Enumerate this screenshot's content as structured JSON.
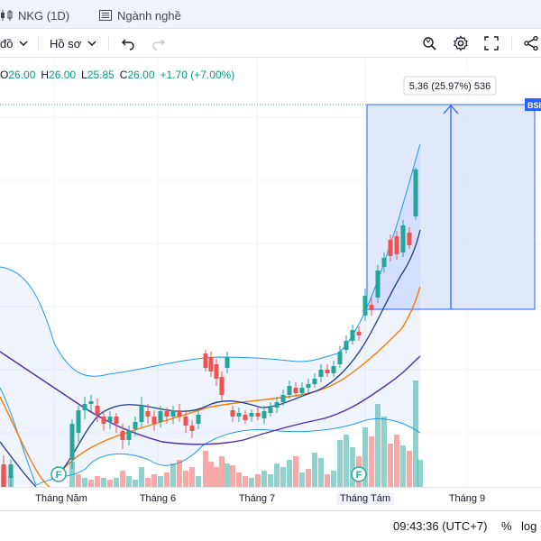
{
  "tabs": {
    "symbol": "NKG (1D)",
    "industry": "Ngành nghề"
  },
  "toolbar": {
    "chart_type_label": "đồ",
    "profile_label": "Hồ sơ"
  },
  "ohlc": {
    "open_label": "O",
    "open": "26.00",
    "high_label": "H",
    "high": "26.00",
    "low_label": "L",
    "low": "25.85",
    "close_label": "C",
    "close": "26.00",
    "change": "+1.70 (+7.00%)"
  },
  "measure": {
    "label": "5.36 (25.97%) 536",
    "price_tag": "BSI"
  },
  "x_axis": {
    "ticks": [
      "Tháng Năm",
      "Tháng 6",
      "Tháng 7",
      "Tháng Tám",
      "Tháng 9"
    ]
  },
  "events": {
    "marker": "F"
  },
  "status": {
    "time": "09:43:36 (UTC+7)",
    "percent": "%",
    "log": "log"
  },
  "colors": {
    "up": "#26a69a",
    "down": "#ef5350",
    "bollinger": "#2962ff",
    "ma_orange": "#f57c00",
    "ma_purple": "#512da8",
    "measure_fill": "#d6e2fb",
    "measure_stroke": "#2962ff"
  }
}
